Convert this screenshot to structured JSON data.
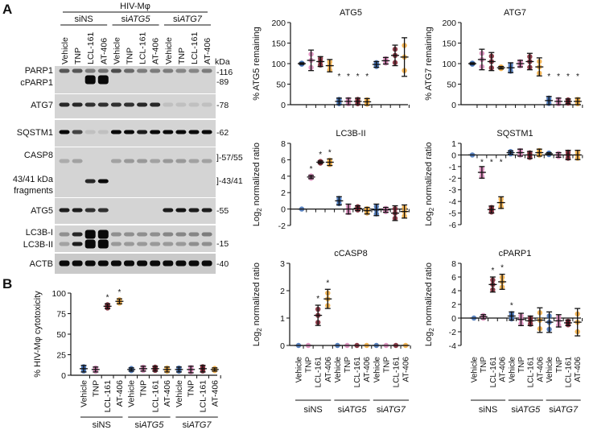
{
  "panel_labels": {
    "a": "A",
    "b": "B"
  },
  "blot": {
    "header": "HIV-Mφ",
    "groups": [
      {
        "prefix": "si",
        "name": "NS",
        "italic": false
      },
      {
        "prefix": "si",
        "name": "ATG5",
        "italic": true
      },
      {
        "prefix": "si",
        "name": "ATG7",
        "italic": true
      }
    ],
    "lanes": [
      "Vehicle",
      "TNP",
      "LCL-161",
      "AT-406",
      "Vehicle",
      "TNP",
      "LCL-161",
      "AT-406",
      "Vehicle",
      "TNP",
      "LCL-161",
      "AT-406"
    ],
    "kda_label": "kDa",
    "panels": [
      {
        "labels": [
          "PARP1",
          "cPARP1"
        ],
        "markers": [
          "-116",
          "-89"
        ],
        "bands": [
          [
            0.6,
            0.6,
            0.4,
            0.45,
            0.65,
            0.5,
            0.4,
            0.4,
            0.4,
            0.35,
            0.35,
            0.4
          ],
          [
            0,
            0,
            1,
            1,
            0,
            0,
            0,
            0,
            0,
            0,
            0,
            0
          ]
        ]
      },
      {
        "labels": [
          "ATG7"
        ],
        "markers": [
          "-78"
        ],
        "bands": [
          [
            0.85,
            0.85,
            0.8,
            0.8,
            0.8,
            0.8,
            0.85,
            0.85,
            0.04,
            0.04,
            0.04,
            0.04
          ]
        ]
      },
      {
        "labels": [
          "SQSTM1"
        ],
        "markers": [
          "-62"
        ],
        "bands": [
          [
            1,
            0.7,
            0.04,
            0.04,
            1,
            1,
            0.9,
            1,
            1,
            1,
            1,
            1
          ]
        ]
      },
      {
        "labels": [
          "CASP8",
          "43/41 kDa",
          "fragments"
        ],
        "markers": [
          "]-57/55",
          "]-43/41"
        ],
        "bands": [
          [
            0.15,
            0.2,
            0,
            0,
            0.2,
            0.25,
            0.25,
            0.2,
            0.25,
            0.25,
            0.2,
            0.2
          ],
          [
            0,
            0,
            0.85,
            1,
            0,
            0,
            0,
            0,
            0,
            0,
            0,
            0
          ]
        ]
      },
      {
        "labels": [
          "ATG5"
        ],
        "markers": [
          "-55"
        ],
        "bands": [
          [
            0.9,
            0.9,
            0.8,
            0.8,
            0,
            0,
            0,
            0,
            0.9,
            0.95,
            0.9,
            0.9
          ]
        ]
      },
      {
        "labels": [
          "LC3B-I",
          "LC3B-II"
        ],
        "markers": [
          "-15"
        ],
        "bands": [
          [
            0.3,
            0.85,
            1,
            1,
            0.3,
            0.3,
            0.3,
            0.3,
            0.35,
            0.35,
            0.35,
            0.4
          ],
          [
            0.2,
            0.9,
            1,
            1,
            0.25,
            0.25,
            0.25,
            0.25,
            0.25,
            0.25,
            0.3,
            0.3
          ]
        ]
      },
      {
        "labels": [
          "ACTB"
        ],
        "markers": [
          "-40"
        ],
        "bands": [
          [
            1,
            1,
            1,
            1,
            1,
            1,
            1,
            1,
            1,
            1,
            1,
            1
          ]
        ]
      }
    ]
  },
  "colors": {
    "Vehicle": "#3d6db5",
    "TNP": "#d985b8",
    "LCL-161": "#7a1c2c",
    "AT-406": "#f2a93b",
    "axis": "#111111"
  },
  "chart_data": [
    {
      "type": "scatter",
      "title": "ATG5",
      "ylabel": "% ATG5 remaining",
      "ylim": [
        0,
        200
      ],
      "yticks": [
        0,
        50,
        100,
        150,
        200
      ],
      "categories": [
        "Vehicle",
        "TNP",
        "LCL-161",
        "AT-406",
        "Vehicle",
        "TNP",
        "LCL-161",
        "AT-406",
        "Vehicle",
        "TNP",
        "LCL-161",
        "AT-406"
      ],
      "groups": [
        "siNS",
        "siATG5",
        "siATG7"
      ],
      "mean": [
        100,
        108,
        105,
        95,
        8,
        8,
        8,
        7,
        98,
        107,
        120,
        116
      ],
      "error": [
        2,
        25,
        12,
        15,
        8,
        8,
        8,
        8,
        7,
        8,
        25,
        47
      ],
      "significant": [
        false,
        false,
        false,
        false,
        true,
        true,
        true,
        true,
        false,
        false,
        false,
        false
      ]
    },
    {
      "type": "scatter",
      "title": "ATG7",
      "ylabel": "% ATG7 remaining",
      "ylim": [
        0,
        200
      ],
      "yticks": [
        0,
        50,
        100,
        150,
        200
      ],
      "mean": [
        100,
        110,
        105,
        90,
        90,
        100,
        105,
        92,
        10,
        8,
        8,
        8
      ],
      "error": [
        2,
        25,
        22,
        3,
        12,
        8,
        20,
        22,
        10,
        8,
        6,
        8
      ],
      "significant": [
        false,
        false,
        false,
        false,
        false,
        false,
        false,
        false,
        true,
        true,
        true,
        true
      ]
    },
    {
      "type": "scatter",
      "title": "LC3B-II",
      "ylabel": "Log2 normalized ratio",
      "ylim": [
        -2,
        8
      ],
      "yticks": [
        -2,
        0,
        2,
        4,
        6,
        8
      ],
      "mean": [
        0,
        3.9,
        5.7,
        5.7,
        1.0,
        0,
        0.1,
        -0.2,
        -0.1,
        -0.1,
        -0.5,
        -0.3
      ],
      "error": [
        0,
        0.2,
        0.15,
        0.4,
        0.5,
        0.6,
        0.3,
        0.4,
        0.7,
        0.3,
        0.9,
        0.8
      ],
      "significant": [
        false,
        true,
        true,
        true,
        false,
        false,
        false,
        false,
        false,
        false,
        false,
        false
      ]
    },
    {
      "type": "scatter",
      "title": "SQSTM1",
      "ylabel": "Log2 normalized ratio",
      "ylim": [
        -6,
        1
      ],
      "yticks": [
        -6,
        -5,
        -4,
        -3,
        -2,
        -1,
        0,
        1
      ],
      "mean": [
        0,
        -1.5,
        -4.7,
        -4.1,
        0.2,
        0.2,
        0,
        0.2,
        0.1,
        0,
        0,
        0
      ],
      "error": [
        0,
        0.5,
        0.3,
        0.5,
        0.15,
        0.3,
        0.3,
        0.3,
        0.1,
        0.2,
        0.4,
        0.4
      ],
      "significant": [
        false,
        true,
        true,
        true,
        false,
        false,
        false,
        false,
        false,
        false,
        false,
        false
      ]
    },
    {
      "type": "scatter",
      "title": "cCASP8",
      "ylabel": "Log2 normalized ratio",
      "ylim": [
        0,
        3
      ],
      "yticks": [
        0,
        1,
        2,
        3
      ],
      "mean": [
        0,
        0,
        1.1,
        1.7,
        0,
        0,
        0,
        0,
        0,
        0,
        0,
        0
      ],
      "error": [
        0,
        0,
        0.37,
        0.35,
        0,
        0,
        0,
        0,
        0,
        0,
        0,
        0
      ],
      "significant": [
        false,
        false,
        true,
        true,
        false,
        false,
        false,
        false,
        false,
        false,
        false,
        false
      ]
    },
    {
      "type": "scatter",
      "title": "cPARP1",
      "ylabel": "Log2 normalized ratio",
      "ylim": [
        -4,
        8
      ],
      "yticks": [
        -4,
        -2,
        0,
        2,
        4,
        6,
        8
      ],
      "mean": [
        0,
        0.2,
        4.9,
        5.3,
        0.3,
        -0.2,
        -0.4,
        -0.3,
        -0.6,
        -0.4,
        -0.7,
        -0.6
      ],
      "error": [
        0,
        0.3,
        1.1,
        1.1,
        0.6,
        0.9,
        0.7,
        1.8,
        1.5,
        0.9,
        0.4,
        2.0
      ],
      "significant": [
        false,
        false,
        true,
        true,
        true,
        false,
        false,
        false,
        false,
        false,
        false,
        false
      ]
    },
    {
      "type": "scatter",
      "title": "",
      "ylabel": "% HIV-Mφ cytotoxicity",
      "ylim": [
        0,
        100
      ],
      "yticks": [
        0,
        25,
        50,
        75,
        100
      ],
      "mean": [
        8,
        7,
        84,
        90,
        7,
        8,
        8,
        7,
        7,
        7,
        8,
        7
      ],
      "error": [
        4,
        3,
        3,
        3,
        2,
        3,
        3,
        3,
        3,
        4,
        4,
        2
      ],
      "significant": [
        false,
        false,
        true,
        true,
        false,
        false,
        false,
        false,
        false,
        false,
        false,
        false
      ]
    }
  ],
  "star": "*"
}
